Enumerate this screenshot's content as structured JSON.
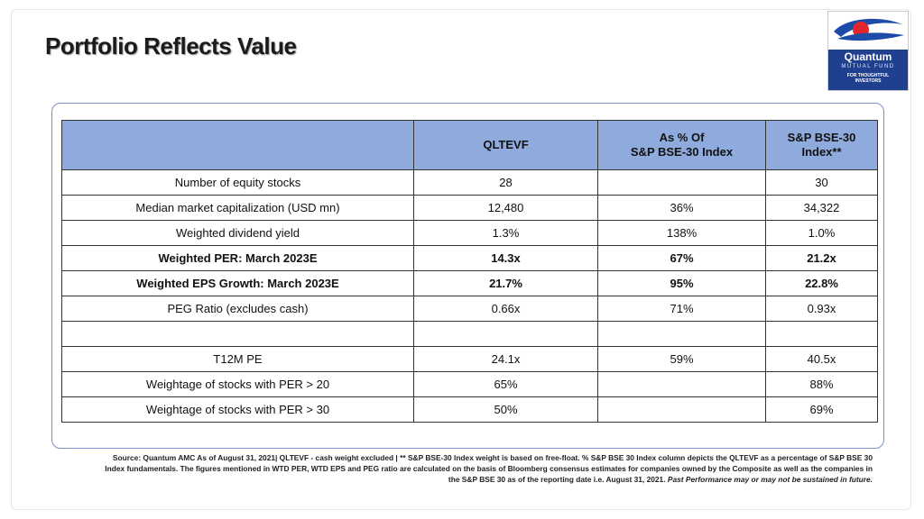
{
  "title": "Portfolio Reflects Value",
  "logo": {
    "brand": "Quantum",
    "subtitle": "MUTUAL FUND",
    "tagline_1": "FOR THOUGHTFUL",
    "tagline_2": "INVESTORS",
    "colors": {
      "navy": "#1f3f8f",
      "red": "#e3262c",
      "blue": "#1e4ba8"
    }
  },
  "table": {
    "headers": [
      "",
      "QLTEVF",
      "As % Of\nS&P BSE-30 Index",
      "S&P BSE-30\nIndex**"
    ],
    "rows": [
      {
        "label": "Number of equity stocks",
        "qltevf": "28",
        "pct": "",
        "index": "30",
        "bold": false
      },
      {
        "label": "Median market capitalization (USD mn)",
        "qltevf": "12,480",
        "pct": "36%",
        "index": "34,322",
        "bold": false
      },
      {
        "label": "Weighted dividend yield",
        "qltevf": "1.3%",
        "pct": "138%",
        "index": "1.0%",
        "bold": false
      },
      {
        "label": "Weighted PER: March 2023E",
        "qltevf": "14.3x",
        "pct": "67%",
        "index": "21.2x",
        "bold": true
      },
      {
        "label": "Weighted EPS Growth: March 2023E",
        "qltevf": "21.7%",
        "pct": "95%",
        "index": "22.8%",
        "bold": true
      },
      {
        "label": "PEG Ratio (excludes cash)",
        "qltevf": "0.66x",
        "pct": "71%",
        "index": "0.93x",
        "bold": false
      },
      {
        "label": "",
        "qltevf": "",
        "pct": "",
        "index": "",
        "bold": false
      },
      {
        "label": "T12M PE",
        "qltevf": "24.1x",
        "pct": "59%",
        "index": "40.5x",
        "bold": false
      },
      {
        "label": "Weightage of stocks with PER > 20",
        "qltevf": "65%",
        "pct": "",
        "index": "88%",
        "bold": false
      },
      {
        "label": "Weightage of stocks with PER  > 30",
        "qltevf": "50%",
        "pct": "",
        "index": "69%",
        "bold": false
      }
    ],
    "header_color": "#8faadc"
  },
  "footnote": {
    "text": "Source: Quantum AMC As of  August 31, 2021| QLTEVF - cash weight excluded | ** S&P BSE-30 Index weight is based on free-float. % S&P BSE 30 Index column depicts the QLTEVF as a percentage of S&P BSE 30 Index fundamentals. The figures mentioned in WTD PER, WTD EPS and PEG ratio are calculated on the basis of Bloomberg consensus estimates for companies owned by the Composite as well as the companies in the S&P BSE 30 as of the reporting date i.e. August 31, 2021.",
    "disclaimer": "Past Performance may or may not be sustained in future."
  }
}
